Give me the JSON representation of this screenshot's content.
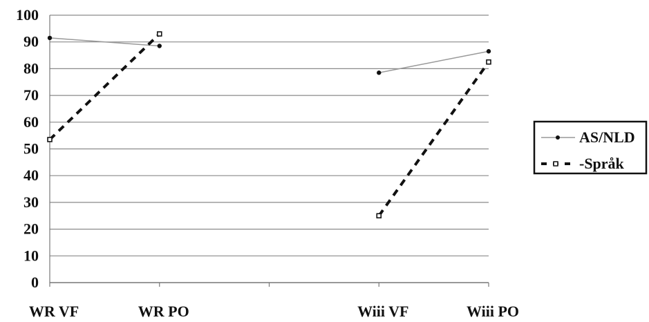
{
  "chart_data": {
    "type": "line",
    "title": "",
    "xlabel": "",
    "ylabel": "",
    "ylim": [
      0,
      100
    ],
    "yticks": [
      0,
      10,
      20,
      30,
      40,
      50,
      60,
      70,
      80,
      90,
      100
    ],
    "grid": "horizontal",
    "legend_position": "right",
    "categories": [
      "WR VF",
      "WR PO",
      "",
      "Wiii VF",
      "Wiii PO"
    ],
    "series": [
      {
        "name": "AS/NLD",
        "style": "solid",
        "color": "#999999",
        "marker_color": "#111111",
        "values": [
          91.5,
          88.5,
          null,
          78.5,
          86.5
        ]
      },
      {
        "name": "Språk",
        "style": "dashed",
        "color": "#111111",
        "marker_color": "#111111",
        "values": [
          53.5,
          93,
          null,
          25,
          82.5
        ]
      }
    ]
  }
}
